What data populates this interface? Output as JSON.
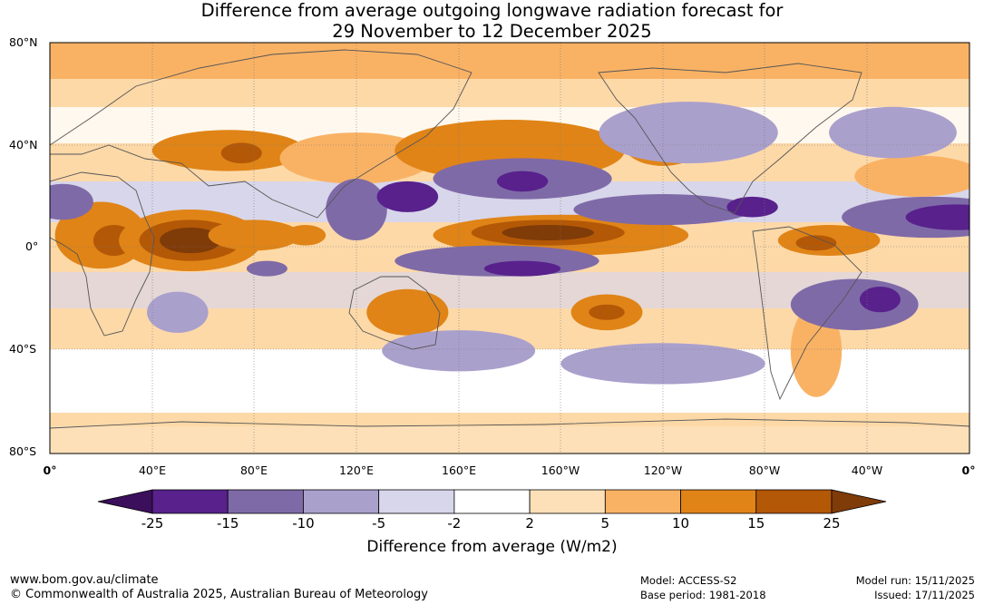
{
  "title_line1": "Difference from average outgoing longwave radiation forecast for",
  "title_line2": "29 November to 12 December 2025",
  "lat_labels": [
    "80°N",
    "40°N",
    "0°",
    "40°S",
    "80°S"
  ],
  "lon_labels": [
    "0°",
    "40°E",
    "80°E",
    "120°E",
    "160°E",
    "160°W",
    "120°W",
    "80°W",
    "40°W",
    "0°"
  ],
  "colorbar": {
    "label": "Difference from average (W/m2)",
    "ticks": [
      "-25",
      "-15",
      "-10",
      "-5",
      "-2",
      "2",
      "5",
      "10",
      "15",
      "25"
    ],
    "colors": [
      "#3b0f5c",
      "#58218c",
      "#7f6aa8",
      "#aaa0cc",
      "#d8d6ea",
      "#ffffff",
      "#fde0b8",
      "#f9b264",
      "#e08417",
      "#b35806",
      "#7f3b08"
    ]
  },
  "footer": {
    "url": "www.bom.gov.au/climate",
    "copyright": "© Commonwealth of Australia 2025, Australian Bureau of Meteorology",
    "model": "Model: ACCESS-S2",
    "base_period": "Base period: 1981-2018",
    "model_run": "Model run: 15/11/2025",
    "issued": "Issued: 17/11/2025"
  },
  "map_anomalies": [
    {
      "lon": 20,
      "lat": 5,
      "w": 18,
      "h": 13,
      "level": 10
    },
    {
      "lon": 25,
      "lat": 3,
      "w": 8,
      "h": 6,
      "level": 15
    },
    {
      "lon": 55,
      "lat": 3,
      "w": 28,
      "h": 12,
      "level": 10
    },
    {
      "lon": 55,
      "lat": 3,
      "w": 20,
      "h": 8,
      "level": 15
    },
    {
      "lon": 55,
      "lat": 3,
      "w": 12,
      "h": 5,
      "level": 25
    },
    {
      "lon": 80,
      "lat": 5,
      "w": 18,
      "h": 6,
      "level": 10
    },
    {
      "lon": 100,
      "lat": 5,
      "w": 8,
      "h": 4,
      "level": 10
    },
    {
      "lon": 70,
      "lat": 38,
      "w": 30,
      "h": 8,
      "level": 10
    },
    {
      "lon": 75,
      "lat": 37,
      "w": 8,
      "h": 4,
      "level": 15
    },
    {
      "lon": 120,
      "lat": 35,
      "w": 30,
      "h": 10,
      "level": 5
    },
    {
      "lon": 200,
      "lat": 5,
      "w": 50,
      "h": 8,
      "level": 10
    },
    {
      "lon": 195,
      "lat": 6,
      "w": 30,
      "h": 5,
      "level": 15
    },
    {
      "lon": 195,
      "lat": 6,
      "w": 18,
      "h": 3,
      "level": 25
    },
    {
      "lon": 218,
      "lat": -25,
      "w": 14,
      "h": 7,
      "level": 10
    },
    {
      "lon": 218,
      "lat": -25,
      "w": 7,
      "h": 3,
      "level": 15
    },
    {
      "lon": 140,
      "lat": -25,
      "w": 16,
      "h": 9,
      "level": 10
    },
    {
      "lon": 305,
      "lat": 3,
      "w": 20,
      "h": 6,
      "level": 10
    },
    {
      "lon": 300,
      "lat": 2,
      "w": 8,
      "h": 3,
      "level": 15
    },
    {
      "lon": 180,
      "lat": 38,
      "w": 45,
      "h": 12,
      "level": 10
    },
    {
      "lon": 240,
      "lat": 40,
      "w": 15,
      "h": 8,
      "level": 10
    },
    {
      "lon": 340,
      "lat": 28,
      "w": 25,
      "h": 8,
      "level": 5
    },
    {
      "lon": 300,
      "lat": -40,
      "w": 10,
      "h": 18,
      "level": 5
    },
    {
      "lon": 120,
      "lat": 15,
      "w": 12,
      "h": 12,
      "level": -10
    },
    {
      "lon": 140,
      "lat": 20,
      "w": 12,
      "h": 6,
      "level": -15
    },
    {
      "lon": 175,
      "lat": -5,
      "w": 40,
      "h": 6,
      "level": -10
    },
    {
      "lon": 185,
      "lat": -8,
      "w": 15,
      "h": 3,
      "level": -15
    },
    {
      "lon": 185,
      "lat": 27,
      "w": 35,
      "h": 8,
      "level": -10
    },
    {
      "lon": 185,
      "lat": 26,
      "w": 10,
      "h": 4,
      "level": -15
    },
    {
      "lon": 240,
      "lat": 15,
      "w": 35,
      "h": 6,
      "level": -10
    },
    {
      "lon": 275,
      "lat": 16,
      "w": 10,
      "h": 4,
      "level": -15
    },
    {
      "lon": 345,
      "lat": 12,
      "w": 35,
      "h": 8,
      "level": -10
    },
    {
      "lon": 355,
      "lat": 12,
      "w": 20,
      "h": 5,
      "level": -15
    },
    {
      "lon": 5,
      "lat": 18,
      "w": 12,
      "h": 7,
      "level": -10
    },
    {
      "lon": 315,
      "lat": -22,
      "w": 25,
      "h": 10,
      "level": -10
    },
    {
      "lon": 325,
      "lat": -20,
      "w": 8,
      "h": 5,
      "level": -15
    },
    {
      "lon": 250,
      "lat": 45,
      "w": 35,
      "h": 12,
      "level": -5
    },
    {
      "lon": 330,
      "lat": 45,
      "w": 25,
      "h": 10,
      "level": -5
    },
    {
      "lon": 160,
      "lat": -40,
      "w": 30,
      "h": 8,
      "level": -5
    },
    {
      "lon": 240,
      "lat": -45,
      "w": 40,
      "h": 8,
      "level": -5
    },
    {
      "lon": 85,
      "lat": -8,
      "w": 8,
      "h": 3,
      "level": -10
    },
    {
      "lon": 50,
      "lat": -25,
      "w": 12,
      "h": 8,
      "level": -5
    }
  ]
}
